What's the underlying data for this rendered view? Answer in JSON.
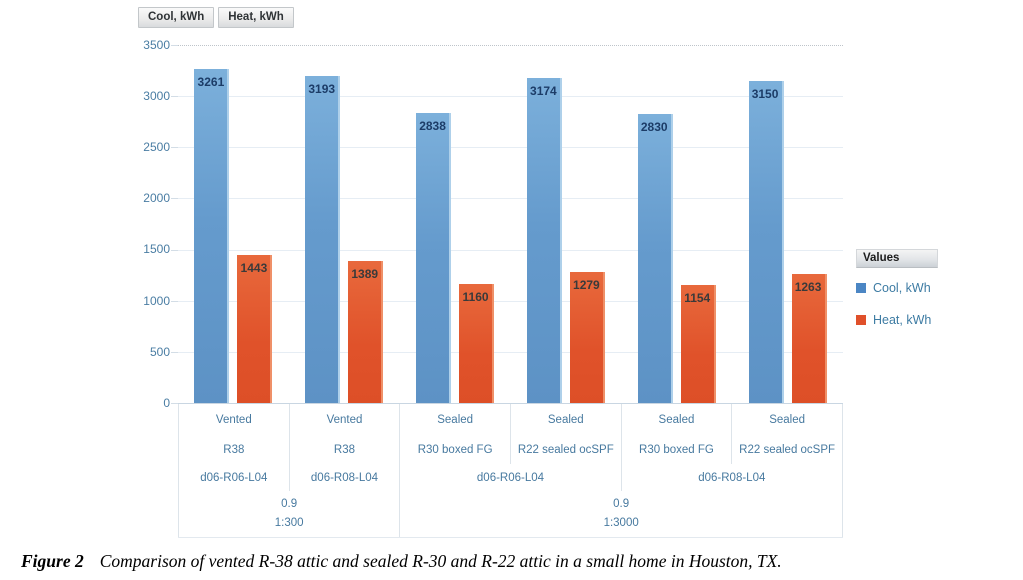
{
  "field_buttons": [
    {
      "label": "Cool, kWh"
    },
    {
      "label": "Heat, kWh"
    }
  ],
  "y_axis": {
    "ticks": [
      "3500",
      "3000",
      "2500",
      "2000",
      "1500",
      "1000",
      "500",
      "0"
    ]
  },
  "x_axis": {
    "row1": [
      "Vented",
      "Vented",
      "Sealed",
      "Sealed",
      "Sealed",
      "Sealed"
    ],
    "row2": [
      "R38",
      "R38",
      "R30 boxed FG",
      "R22 sealed ocSPF",
      "R30 boxed FG",
      "R22 sealed ocSPF"
    ],
    "row3": [
      {
        "label": "d06-R06-L04"
      },
      {
        "label": "d06-R08-L04"
      },
      {
        "label": "d06-R06-L04"
      },
      {
        "label": "d06-R08-L04"
      }
    ],
    "row4": [
      {
        "label": "0.9"
      },
      {
        "label": "0.9"
      }
    ],
    "row5": [
      {
        "label": "1:300"
      },
      {
        "label": "1:3000"
      }
    ]
  },
  "legend": {
    "header": "Values",
    "items": [
      {
        "label": "Cool, kWh",
        "color": "#4b86c4"
      },
      {
        "label": "Heat, kWh",
        "color": "#e0502a"
      }
    ]
  },
  "caption": {
    "label": "Figure 2",
    "text": "Comparison of vented R-38 attic and sealed R-30 and R-22 attic in a small home in Houston, TX."
  },
  "colors": {
    "cool_bar": "#659bcd",
    "heat_bar": "#e0522a",
    "axis_text": "#47799f",
    "cool_data_label": "#1c3c67",
    "heat_data_label": "#3a3a3a"
  },
  "chart_data": {
    "type": "bar",
    "title": "",
    "categories": [
      [
        "Vented",
        "R38",
        "d06-R06-L04",
        "0.9",
        "1:300"
      ],
      [
        "Vented",
        "R38",
        "d06-R08-L04",
        "0.9",
        "1:300"
      ],
      [
        "Sealed",
        "R30 boxed FG",
        "d06-R06-L04",
        "0.9",
        "1:3000"
      ],
      [
        "Sealed",
        "R22 sealed ocSPF",
        "d06-R06-L04",
        "0.9",
        "1:3000"
      ],
      [
        "Sealed",
        "R30 boxed FG",
        "d06-R08-L04",
        "0.9",
        "1:3000"
      ],
      [
        "Sealed",
        "R22 sealed ocSPF",
        "d06-R08-L04",
        "0.9",
        "1:3000"
      ]
    ],
    "series": [
      {
        "name": "Cool, kWh",
        "color": "#659bcd",
        "values": [
          3261,
          3193,
          2838,
          3174,
          2830,
          3150
        ]
      },
      {
        "name": "Heat, kWh",
        "color": "#e0522a",
        "values": [
          1443,
          1389,
          1160,
          1279,
          1154,
          1263
        ]
      }
    ],
    "xlabel": "",
    "ylabel": "",
    "ylim": [
      0,
      3500
    ],
    "ytick_step": 500,
    "grid": true,
    "legend_position": "right",
    "data_labels": true
  }
}
